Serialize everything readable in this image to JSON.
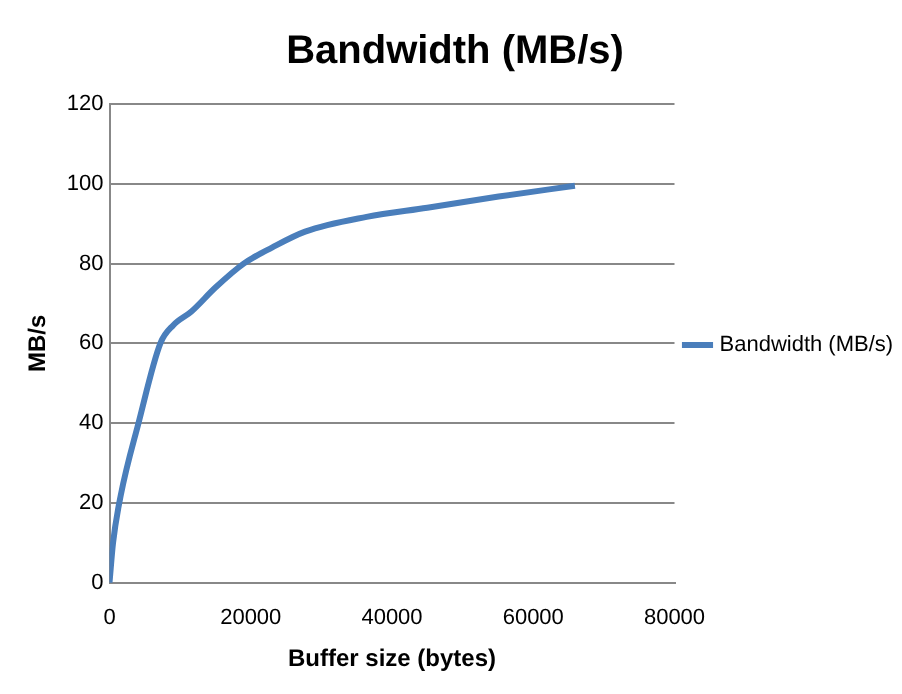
{
  "chart_data": {
    "type": "line",
    "title": "Bandwidth (MB/s)",
    "xlabel": "Buffer size (bytes)",
    "ylabel": "MB/s",
    "series": [
      {
        "name": "Bandwidth (MB/s)",
        "color": "#4a7ebb",
        "x": [
          0,
          500,
          1600,
          4100,
          7200,
          9000,
          11600,
          15000,
          19000,
          23000,
          27700,
          36400,
          45000,
          55100,
          65900
        ],
        "values": [
          0,
          10,
          22,
          40,
          60,
          64.5,
          68,
          74,
          80,
          84,
          88,
          91.7,
          94,
          96.8,
          99.5
        ]
      }
    ],
    "xlim": [
      0,
      80000
    ],
    "xticks": [
      0,
      20000,
      40000,
      60000,
      80000
    ],
    "ylim": [
      0,
      120
    ],
    "yticks": [
      0,
      20,
      40,
      60,
      80,
      100,
      120
    ],
    "grid": "y",
    "legend": "right",
    "marker": "none",
    "line_style": "solid"
  }
}
